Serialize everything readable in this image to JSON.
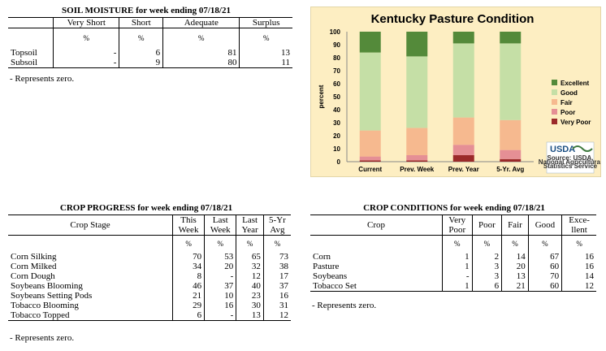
{
  "soil_moisture": {
    "title": "SOIL MOISTURE for week ending 07/18/21",
    "headers": [
      "Very Short",
      "Short",
      "Adequate",
      "Surplus"
    ],
    "units": [
      "%",
      "%",
      "%",
      "%"
    ],
    "rows": [
      {
        "label": "Topsoil",
        "values": [
          "-",
          "6",
          "81",
          "13"
        ]
      },
      {
        "label": "Subsoil",
        "values": [
          "-",
          "9",
          "80",
          "11"
        ]
      }
    ],
    "note": "- Represents zero."
  },
  "crop_progress": {
    "title": "CROP PROGRESS for week ending 07/18/21",
    "stage_header": "Crop Stage",
    "headers": [
      [
        "This",
        "Week"
      ],
      [
        "Last",
        "Week"
      ],
      [
        "Last",
        "Year"
      ],
      [
        "5-Yr",
        "Avg"
      ]
    ],
    "units": [
      "%",
      "%",
      "%",
      "%"
    ],
    "rows": [
      {
        "label": "Corn Silking",
        "values": [
          "70",
          "53",
          "65",
          "73"
        ]
      },
      {
        "label": "Corn Milked",
        "values": [
          "34",
          "20",
          "32",
          "38"
        ]
      },
      {
        "label": "Corn Dough",
        "values": [
          "8",
          "-",
          "12",
          "17"
        ]
      },
      {
        "label": "Soybeans Blooming",
        "values": [
          "46",
          "37",
          "40",
          "37"
        ]
      },
      {
        "label": "Soybeans Setting Pods",
        "values": [
          "21",
          "10",
          "23",
          "16"
        ]
      },
      {
        "label": "Tobacco Blooming",
        "values": [
          "29",
          "16",
          "30",
          "31"
        ]
      },
      {
        "label": "Tobacco Topped",
        "values": [
          "6",
          "-",
          "13",
          "12"
        ]
      }
    ],
    "note": "- Represents zero."
  },
  "crop_conditions": {
    "title": "CROP CONDITIONS for week ending 07/18/21",
    "crop_header": "Crop",
    "headers": [
      [
        "Very",
        "Poor"
      ],
      [
        "Poor"
      ],
      [
        "Fair"
      ],
      [
        "Good"
      ],
      [
        "Exce-",
        "llent"
      ]
    ],
    "units": [
      "%",
      "%",
      "%",
      "%",
      "%"
    ],
    "rows": [
      {
        "label": "Corn",
        "values": [
          "1",
          "2",
          "14",
          "67",
          "16"
        ]
      },
      {
        "label": "Pasture",
        "values": [
          "1",
          "3",
          "20",
          "60",
          "16"
        ]
      },
      {
        "label": "Soybeans",
        "values": [
          "-",
          "3",
          "13",
          "70",
          "14"
        ]
      },
      {
        "label": "Tobacco Set",
        "values": [
          "1",
          "6",
          "21",
          "60",
          "12"
        ]
      }
    ],
    "note": "- Represents zero."
  },
  "chart_data": {
    "type": "bar",
    "stacked": true,
    "title": "Kentucky Pasture Condition",
    "ylabel": "percent",
    "xlabel": "",
    "ylim": [
      0,
      100
    ],
    "yticks": [
      0,
      10,
      20,
      30,
      40,
      50,
      60,
      70,
      80,
      90,
      100
    ],
    "categories": [
      "Current",
      "Prev. Week",
      "Prev. Year",
      "5-Yr. Avg"
    ],
    "series": [
      {
        "name": "Very Poor",
        "color": "#9b2a2a",
        "values": [
          1,
          1,
          5,
          2
        ]
      },
      {
        "name": "Poor",
        "color": "#e58f95",
        "values": [
          3,
          4,
          8,
          7
        ]
      },
      {
        "name": "Fair",
        "color": "#f6b98f",
        "values": [
          20,
          21,
          21,
          23
        ]
      },
      {
        "name": "Good",
        "color": "#c5dfa6",
        "values": [
          60,
          55,
          57,
          59
        ]
      },
      {
        "name": "Excellent",
        "color": "#548a3a",
        "values": [
          16,
          19,
          9,
          9
        ]
      }
    ],
    "legend_order": [
      "Excellent",
      "Good",
      "Fair",
      "Poor",
      "Very Poor"
    ],
    "legend_position": "right",
    "grid": false,
    "background": "#fdeec2",
    "logo_text": "USDA",
    "source_lines": [
      "Source: USDA,",
      "National Agricultural",
      "Statistics Service"
    ]
  }
}
